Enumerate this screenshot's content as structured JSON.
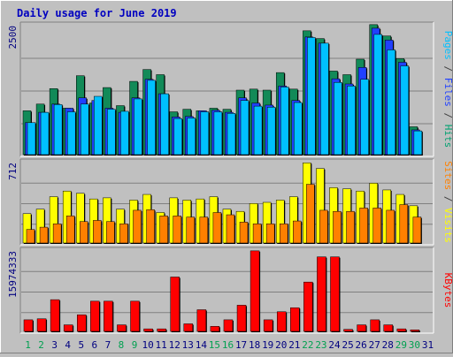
{
  "chart_data": {
    "type": "bar",
    "title": "Daily usage for June 2019",
    "categories": [
      "1",
      "2",
      "3",
      "4",
      "5",
      "6",
      "7",
      "8",
      "9",
      "10",
      "11",
      "12",
      "13",
      "14",
      "15",
      "16",
      "17",
      "18",
      "19",
      "20",
      "21",
      "22",
      "23",
      "24",
      "25",
      "26",
      "27",
      "28",
      "29",
      "30",
      "31"
    ],
    "weekend_days": [
      "1",
      "2",
      "8",
      "9",
      "15",
      "16",
      "22",
      "23",
      "29",
      "30"
    ],
    "panels": [
      {
        "name": "hits-files-pages",
        "ymax_label": "2500",
        "ymax": 2500,
        "ylabel_parts": [
          {
            "text": "Pages",
            "color": "#00c0ff"
          },
          {
            "text": " / ",
            "color": "#404040"
          },
          {
            "text": "Files",
            "color": "#2040ff"
          },
          {
            "text": " / ",
            "color": "#404040"
          },
          {
            "text": "Hits",
            "color": "#00a070"
          }
        ],
        "series": [
          {
            "name": "Hits",
            "color": "#128a58",
            "values": [
              850,
              980,
              1280,
              900,
              1530,
              1000,
              1300,
              950,
              1420,
              1650,
              1550,
              830,
              880,
              850,
              900,
              880,
              1250,
              1270,
              1250,
              1590,
              1270,
              2400,
              2250,
              1620,
              1550,
              1850,
              2520,
              2300,
              1860,
              540,
              null
            ]
          },
          {
            "name": "Files",
            "color": "#2040ff",
            "values": [
              620,
              820,
              980,
              900,
              1100,
              1050,
              900,
              820,
              1100,
              1460,
              1180,
              730,
              740,
              850,
              860,
              820,
              1100,
              1000,
              960,
              1330,
              1050,
              2280,
              2160,
              1470,
              1370,
              1690,
              2450,
              2220,
              1790,
              480,
              null
            ]
          },
          {
            "name": "Pages",
            "color": "#00c0ff",
            "values": [
              620,
              820,
              970,
              830,
              980,
              1130,
              880,
              840,
              1080,
              1440,
              1180,
              700,
              710,
              830,
              830,
              800,
              1050,
              940,
              920,
              1310,
              1010,
              2270,
              2160,
              1400,
              1330,
              1460,
              2330,
              2030,
              1720,
              460,
              null
            ]
          }
        ]
      },
      {
        "name": "visits-sites",
        "ymax_label": "712",
        "ymax": 712,
        "ylabel_parts": [
          {
            "text": "Sites",
            "color": "#ff8000"
          },
          {
            "text": " / ",
            "color": "#404040"
          },
          {
            "text": "Visits",
            "color": "#ffff00"
          }
        ],
        "series": [
          {
            "name": "Visits",
            "color": "#ffff00",
            "values": [
              260,
              300,
              410,
              460,
              440,
              390,
              400,
              300,
              380,
              430,
              270,
              400,
              380,
              390,
              410,
              300,
              280,
              350,
              360,
              380,
              410,
              710,
              660,
              490,
              480,
              460,
              530,
              470,
              430,
              330,
              null
            ]
          },
          {
            "name": "Sites",
            "color": "#ff8000",
            "values": [
              120,
              140,
              170,
              240,
              190,
              200,
              190,
              170,
              290,
              295,
              240,
              240,
              230,
              230,
              270,
              250,
              185,
              170,
              170,
              170,
              195,
              520,
              290,
              280,
              280,
              310,
              310,
              290,
              340,
              230,
              null
            ]
          }
        ]
      },
      {
        "name": "kbytes",
        "ymax_label": "15974333",
        "ymax": 15974333,
        "ylabel_parts": [
          {
            "text": "KBytes",
            "color": "#ff0000"
          }
        ],
        "series": [
          {
            "name": "KBytes",
            "color": "#ff0000",
            "values": [
              2300000,
              2500000,
              6300000,
              1300000,
              3300000,
              6000000,
              6000000,
              1300000,
              6000000,
              500000,
              500000,
              10800000,
              1500000,
              4300000,
              1000000,
              2300000,
              5200000,
              16000000,
              2300000,
              3900000,
              4700000,
              9800000,
              14800000,
              14800000,
              400000,
              1300000,
              2300000,
              1300000,
              500000,
              300000,
              null
            ]
          }
        ]
      }
    ],
    "colors": {
      "background": "#c0c0c0",
      "plot_background": "#c0c0c0",
      "title": "#0000c0",
      "weekday_label": "#000080",
      "weekend_label": "#00a050",
      "shadow": "#000000"
    }
  }
}
